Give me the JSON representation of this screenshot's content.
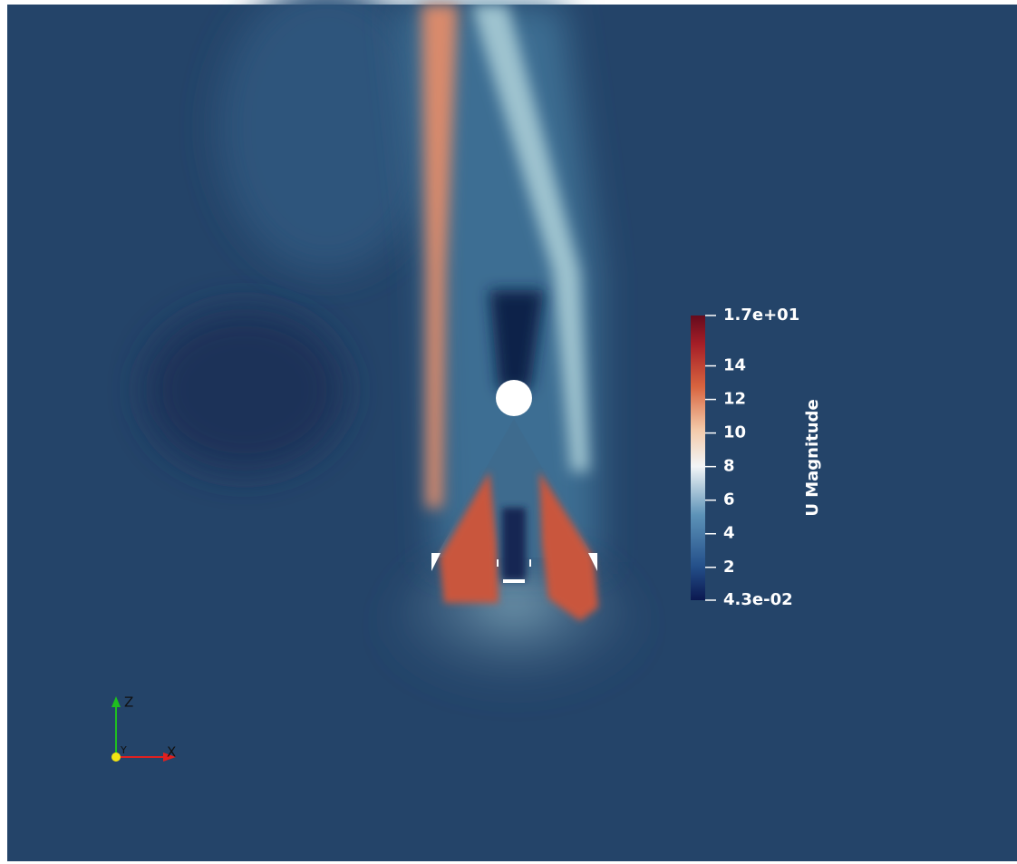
{
  "colorbar": {
    "title": "U Magnitude",
    "range": [
      {
        "value": 0.043,
        "label": "4.3e-02"
      },
      {
        "value": 17,
        "label": "1.7e+01"
      }
    ],
    "ticks": [
      2,
      4,
      6,
      8,
      10,
      12,
      14
    ]
  },
  "axes": {
    "labels": [
      "Z",
      "X",
      "Y"
    ]
  }
}
